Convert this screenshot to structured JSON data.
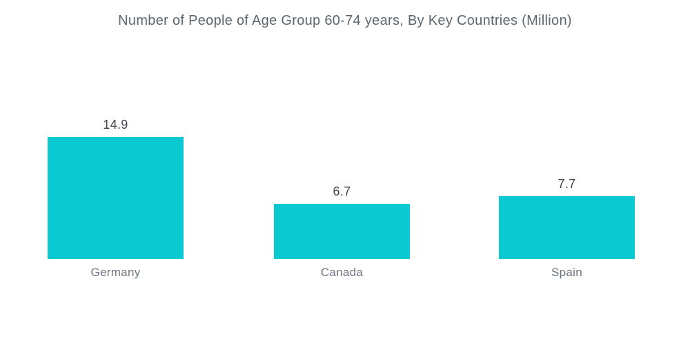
{
  "chart_data": {
    "type": "bar",
    "title": "Number of People of Age Group 60-74 years, By Key Countries (Million)",
    "categories": [
      "Germany",
      "Canada",
      "Spain"
    ],
    "values": [
      14.9,
      6.7,
      7.7
    ],
    "value_labels": [
      "14.9",
      "6.7",
      "7.7"
    ],
    "xlabel": "",
    "ylabel": "",
    "ylim": [
      0,
      14.9
    ],
    "grid": false,
    "legend": false,
    "axes_visible": false,
    "bar_color": "#0AC9D1",
    "title_color": "#5c6670",
    "value_label_color": "#3f454d",
    "category_label_color": "#6a737d",
    "background_color": "#ffffff"
  }
}
